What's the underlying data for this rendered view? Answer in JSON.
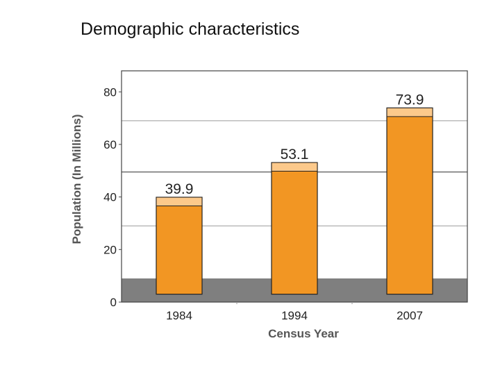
{
  "page": {
    "title": "Demographic characteristics"
  },
  "colors": {
    "bar": "#F29623",
    "bar_top": "#FCC98B",
    "band": "#7F7F7F",
    "grid_dark": "#444444",
    "grid_light": "#9A9A9A",
    "frame": "#444444"
  },
  "chart_data": {
    "type": "bar",
    "categories": [
      "1984",
      "1994",
      "2007"
    ],
    "values": [
      39.9,
      53.1,
      73.9
    ],
    "data_labels": [
      "39.9",
      "53.1",
      "73.9"
    ],
    "title": "",
    "xlabel": "Census Year",
    "ylabel": "Population (In Millions)",
    "y_ticks": [
      "0",
      "20",
      "40",
      "60",
      "80"
    ],
    "ylim": [
      0,
      88
    ],
    "grid": true,
    "legend": "none"
  }
}
